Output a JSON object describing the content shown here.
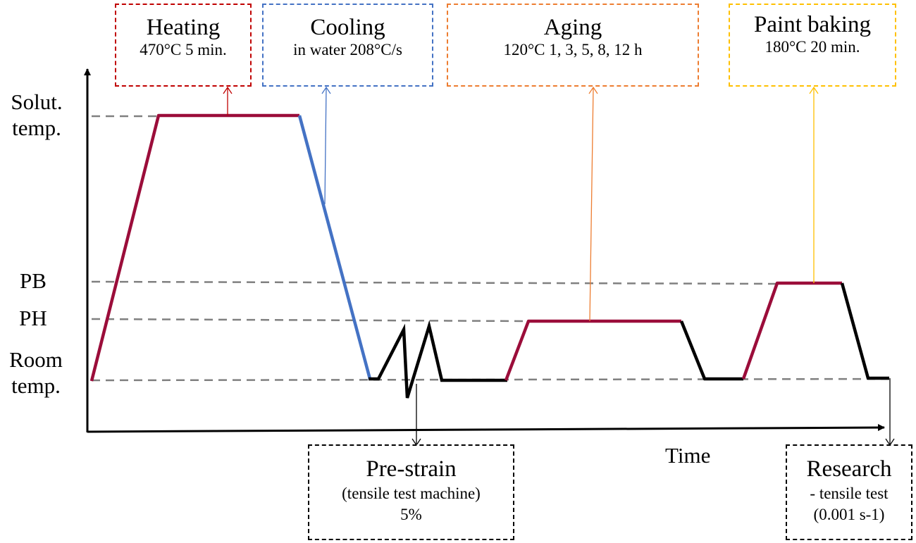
{
  "diagram": {
    "y_labels": {
      "solution": [
        "Solut.",
        "temp."
      ],
      "pb": "PB",
      "ph": "PH",
      "room": [
        "Room",
        "temp."
      ]
    },
    "x_label": "Time",
    "boxes": {
      "heating": {
        "title": "Heating",
        "detail": "470°C 5 min.",
        "color": "#c00000"
      },
      "cooling": {
        "title": "Cooling",
        "detail": "in water 208°C/s",
        "color": "#4472c4"
      },
      "aging": {
        "title": "Aging",
        "detail": "120°C 1, 3, 5, 8, 12 h",
        "color": "#ed7d31"
      },
      "paint_baking": {
        "title": "Paint baking",
        "detail": "180°C 20 min.",
        "color": "#ffc000"
      },
      "pre_strain": {
        "title": "Pre-strain",
        "detail": "(tensile test machine)",
        "detail2": "5%",
        "color": "#000000"
      },
      "research": {
        "title": "Research",
        "detail": "- tensile test",
        "detail2": "(0.001 s-1)",
        "color": "#000000"
      }
    },
    "colors": {
      "heating_segment": "#9b0d3a",
      "cooling_segment": "#4472c4",
      "other_segment": "#000000",
      "reference_line": "#808080",
      "axis": "#000000"
    }
  }
}
